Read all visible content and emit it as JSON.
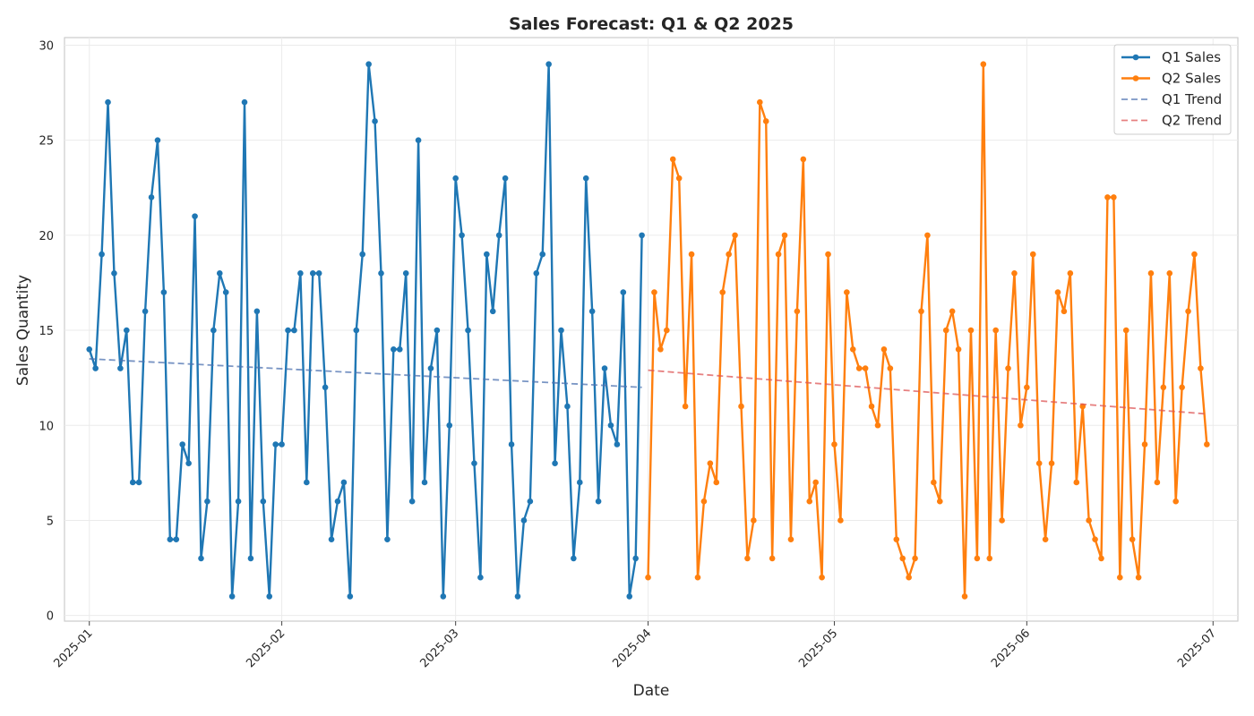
{
  "chart_data": {
    "type": "line",
    "title": "Sales Forecast: Q1 & Q2 2025",
    "xlabel": "Date",
    "ylabel": "Sales Quantity",
    "x_start_date": "2025-01-01",
    "xlim_days": [
      -4,
      185
    ],
    "ylim": [
      -0.3,
      30.4
    ],
    "y_ticks": [
      0,
      5,
      10,
      15,
      20,
      25,
      30
    ],
    "x_ticks": [
      {
        "day": 0,
        "label": "2025-01"
      },
      {
        "day": 31,
        "label": "2025-02"
      },
      {
        "day": 59,
        "label": "2025-03"
      },
      {
        "day": 90,
        "label": "2025-04"
      },
      {
        "day": 120,
        "label": "2025-05"
      },
      {
        "day": 151,
        "label": "2025-06"
      },
      {
        "day": 181,
        "label": "2025-07"
      }
    ],
    "grid": true,
    "legend_position": "top-right",
    "series": [
      {
        "name": "Q1 Sales",
        "color": "#1f77b4",
        "style": "solid-markers",
        "x_start_day": 0,
        "values": [
          14,
          13,
          19,
          27,
          18,
          13,
          15,
          7,
          7,
          16,
          22,
          25,
          17,
          4,
          4,
          9,
          8,
          21,
          3,
          6,
          15,
          18,
          17,
          1,
          6,
          27,
          3,
          16,
          6,
          1,
          9,
          9,
          15,
          15,
          18,
          7,
          18,
          18,
          12,
          4,
          6,
          7,
          1,
          15,
          19,
          29,
          26,
          18,
          4,
          14,
          14,
          18,
          6,
          25,
          7,
          13,
          15,
          1,
          10,
          23,
          20,
          15,
          8,
          2,
          19,
          16,
          20,
          23,
          9,
          1,
          5,
          6,
          18,
          19,
          29,
          8,
          15,
          11,
          3,
          7,
          23,
          16,
          6,
          13,
          10,
          9,
          17,
          1,
          3,
          20
        ]
      },
      {
        "name": "Q2 Sales",
        "color": "#ff7f0e",
        "style": "solid-markers",
        "x_start_day": 90,
        "values": [
          2,
          17,
          14,
          15,
          24,
          23,
          11,
          19,
          2,
          6,
          8,
          7,
          17,
          19,
          20,
          11,
          3,
          5,
          27,
          26,
          3,
          19,
          20,
          4,
          16,
          24,
          6,
          7,
          2,
          19,
          9,
          5,
          17,
          14,
          13,
          13,
          11,
          10,
          14,
          13,
          4,
          3,
          2,
          3,
          16,
          20,
          7,
          6,
          15,
          16,
          14,
          1,
          15,
          3,
          29,
          3,
          15,
          5,
          13,
          18,
          10,
          12,
          19,
          8,
          4,
          8,
          17,
          16,
          18,
          7,
          11,
          5,
          4,
          3,
          22,
          22,
          2,
          15,
          4,
          2,
          9,
          18,
          7,
          12,
          18,
          6,
          12,
          16,
          19,
          13,
          9
        ]
      },
      {
        "name": "Q1 Trend",
        "color": "#4c72b0",
        "style": "dashed",
        "x": [
          0,
          89
        ],
        "values": [
          13.5,
          12.0
        ]
      },
      {
        "name": "Q2 Trend",
        "color": "#dd5555",
        "style": "dashed",
        "x": [
          90,
          180
        ],
        "values": [
          12.9,
          10.6
        ]
      }
    ]
  }
}
